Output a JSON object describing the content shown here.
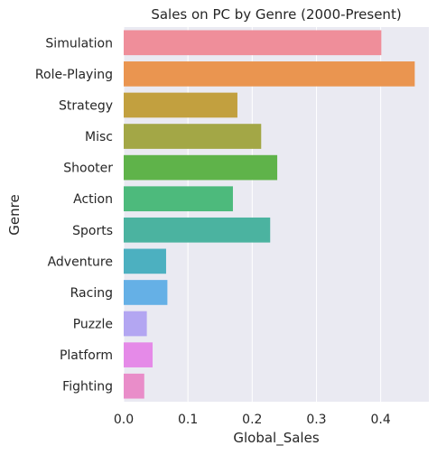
{
  "chart_data": {
    "type": "bar",
    "orientation": "horizontal",
    "title": "Sales on PC by Genre (2000-Present)",
    "xlabel": "Global_Sales",
    "ylabel": "Genre",
    "xlim": [
      0,
      0.475
    ],
    "xticks": [
      0.0,
      0.1,
      0.2,
      0.3,
      0.4
    ],
    "grid": true,
    "categories": [
      "Simulation",
      "Role-Playing",
      "Strategy",
      "Misc",
      "Shooter",
      "Action",
      "Sports",
      "Adventure",
      "Racing",
      "Puzzle",
      "Platform",
      "Fighting"
    ],
    "values": [
      0.401,
      0.453,
      0.177,
      0.214,
      0.239,
      0.17,
      0.228,
      0.066,
      0.068,
      0.036,
      0.045,
      0.032
    ],
    "colors": [
      "#ef8e9a",
      "#ea9550",
      "#c2a03f",
      "#a3a746",
      "#5fb34a",
      "#4dba7c",
      "#4bb3a0",
      "#4cb0c0",
      "#65b0e6",
      "#b3a6f2",
      "#e58ae8",
      "#e98dc9"
    ]
  }
}
